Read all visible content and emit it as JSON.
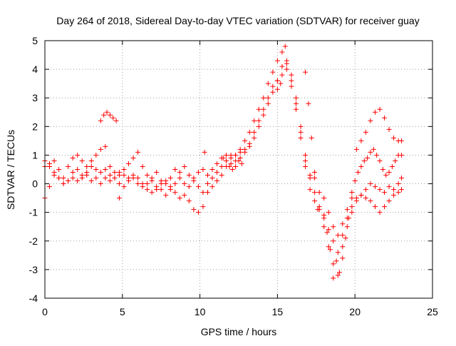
{
  "chart_data": {
    "type": "scatter",
    "title": "Day 264 of 2018, Sidereal Day-to-day VTEC variation (SDTVAR) for receiver guay",
    "xlabel": "GPS time / hours",
    "ylabel": "SDTVAR / TECUs",
    "xlim": [
      0,
      25
    ],
    "ylim": [
      -4,
      5
    ],
    "x_ticks": [
      "0",
      "5",
      "10",
      "15",
      "20",
      "25"
    ],
    "y_ticks": [
      "-4",
      "-3",
      "-2",
      "-1",
      "0",
      "1",
      "2",
      "3",
      "4",
      "5"
    ],
    "grid": true,
    "marker": "plus",
    "color": "#ff0000",
    "series": [
      {
        "x": [
          0.0,
          0.3,
          0.6,
          0.9,
          1.2,
          1.5,
          1.8,
          2.1,
          2.4,
          2.7,
          3.0,
          3.3,
          3.6,
          3.9,
          4.2,
          4.5,
          4.8,
          5.1,
          5.4,
          5.7,
          6.0,
          6.3,
          6.6,
          6.9,
          7.2,
          7.5,
          7.8,
          8.1,
          8.4,
          8.7,
          9.0,
          9.3,
          9.6,
          9.9,
          10.2,
          10.5,
          10.8,
          11.1,
          11.4,
          11.7,
          12.0,
          12.3,
          12.6,
          12.9,
          13.2,
          13.5,
          13.8,
          14.1,
          14.4,
          14.7,
          15.0,
          15.3,
          15.6,
          15.9,
          16.2,
          16.5,
          16.8,
          17.1,
          17.4,
          17.7,
          18.0,
          18.3,
          18.6,
          18.9,
          19.2,
          19.5,
          19.8,
          20.1,
          20.4,
          20.7,
          21.0,
          21.3,
          21.6,
          21.9,
          22.2,
          22.5,
          22.8,
          23.0
        ],
        "y": [
          -0.5,
          -0.1,
          0.3,
          0.2,
          0.0,
          0.1,
          0.2,
          0.1,
          0.2,
          0.3,
          0.1,
          0.2,
          0.0,
          0.2,
          0.1,
          0.2,
          0.0,
          -0.1,
          0.1,
          0.2,
          0.0,
          -0.1,
          0.0,
          0.1,
          -0.2,
          0.0,
          0.1,
          -0.1,
          0.0,
          0.2,
          0.0,
          -0.1,
          0.1,
          -0.1,
          -0.3,
          0.0,
          0.2,
          0.4,
          0.6,
          0.6,
          0.7,
          0.8,
          0.9,
          1.1,
          1.3,
          1.6,
          2.0,
          2.4,
          2.8,
          3.2,
          3.6,
          4.1,
          4.2,
          3.8,
          3.0,
          2.0,
          1.0,
          0.2,
          -0.3,
          -0.8,
          -1.5,
          -2.2,
          -2.8,
          -3.2,
          -2.2,
          -1.5,
          -1.0,
          -0.6,
          -0.4,
          -0.2,
          0.0,
          -0.1,
          -0.2,
          -0.3,
          -0.1,
          -0.2,
          0.0,
          0.2
        ]
      },
      {
        "x": [
          0.0,
          0.3,
          0.6,
          0.9,
          1.2,
          1.5,
          1.8,
          2.1,
          2.4,
          2.7,
          3.0,
          3.3,
          3.6,
          3.9,
          4.2,
          4.5,
          4.8,
          5.1,
          5.4,
          5.7,
          6.0,
          6.3,
          6.6,
          6.9,
          7.2,
          7.5,
          7.8,
          8.1,
          8.4,
          8.7,
          9.0,
          9.3,
          9.6,
          9.9,
          10.2,
          10.5,
          10.8,
          11.1,
          11.4,
          11.7,
          12.0,
          12.3,
          12.6,
          12.9,
          13.2,
          13.5,
          13.8,
          14.1,
          14.4,
          14.7,
          15.0,
          15.3,
          15.6,
          15.9,
          16.2,
          16.5,
          16.8,
          17.1,
          17.4,
          17.7,
          18.0,
          18.3,
          18.6,
          18.9,
          19.2,
          19.5,
          19.8,
          20.1,
          20.4,
          20.7,
          21.0,
          21.3,
          21.6,
          21.9,
          22.2,
          22.5,
          22.8,
          23.0
        ],
        "y": [
          0.8,
          0.6,
          0.4,
          0.2,
          0.0,
          0.1,
          0.4,
          0.5,
          0.3,
          0.4,
          0.6,
          0.5,
          0.4,
          0.5,
          0.3,
          0.2,
          0.4,
          0.3,
          0.2,
          0.3,
          0.2,
          0.0,
          -0.2,
          -0.3,
          -0.1,
          -0.2,
          -0.4,
          -0.2,
          -0.3,
          -0.5,
          -0.4,
          -0.6,
          -0.9,
          -1.0,
          -0.8,
          -0.3,
          -0.1,
          0.1,
          0.3,
          0.8,
          0.9,
          1.0,
          1.1,
          1.2,
          1.4,
          1.8,
          2.2,
          2.6,
          3.0,
          3.4,
          3.6,
          3.8,
          4.0,
          3.4,
          2.6,
          1.6,
          0.6,
          -0.2,
          -0.6,
          -0.9,
          -1.2,
          -1.6,
          -2.0,
          -2.4,
          -1.8,
          -1.2,
          -0.8,
          -0.5,
          -0.4,
          -0.5,
          -0.6,
          -0.8,
          -1.0,
          -0.8,
          -0.6,
          -0.4,
          -0.3,
          -0.2
        ]
      },
      {
        "x": [
          0.0,
          0.3,
          0.6,
          0.9,
          1.2,
          1.5,
          1.8,
          2.1,
          2.4,
          2.7,
          3.0,
          3.3,
          3.6,
          3.9,
          4.2,
          4.5,
          4.8,
          5.1,
          5.4,
          5.7,
          6.0,
          6.3,
          6.6,
          6.9,
          7.2,
          7.5,
          7.8,
          8.1,
          8.4,
          8.7,
          9.0,
          9.3,
          9.6,
          9.9,
          10.2,
          10.5,
          10.8,
          11.1,
          11.4,
          11.7,
          12.0,
          12.3,
          12.6,
          12.9,
          13.2,
          13.5,
          13.8,
          14.1,
          14.4,
          14.7,
          15.0,
          15.3,
          15.6,
          15.9,
          16.2,
          16.5,
          16.8,
          17.1,
          17.4,
          17.7,
          18.0,
          18.3,
          18.6,
          18.9,
          19.2,
          19.5,
          19.8,
          20.1,
          20.4,
          20.7,
          21.0,
          21.3,
          21.6,
          21.9,
          22.2,
          22.5,
          22.8,
          23.0
        ],
        "y": [
          0.6,
          0.7,
          0.8,
          0.5,
          0.2,
          0.6,
          0.9,
          1.0,
          0.8,
          0.6,
          0.8,
          1.0,
          1.2,
          1.3,
          0.6,
          0.4,
          0.3,
          0.5,
          0.7,
          0.9,
          1.1,
          0.6,
          0.3,
          0.2,
          0.4,
          0.1,
          0.0,
          0.2,
          0.5,
          0.4,
          0.6,
          0.3,
          0.2,
          0.4,
          0.5,
          0.3,
          0.5,
          0.7,
          0.9,
          1.0,
          1.0,
          1.0,
          1.2,
          1.5,
          1.8,
          2.2,
          2.6,
          3.0,
          3.5,
          3.9,
          4.3,
          4.6,
          4.3,
          3.6,
          2.8,
          1.8,
          0.8,
          0.3,
          0.2,
          -0.3,
          -0.5,
          -1.0,
          -1.5,
          -1.8,
          -1.4,
          -0.9,
          -0.5,
          1.2,
          1.5,
          1.8,
          2.2,
          2.5,
          2.6,
          2.3,
          1.9,
          1.6,
          1.5,
          1.5
        ]
      },
      {
        "x": [
          3.6,
          3.8,
          4.0,
          4.2,
          4.4,
          4.6,
          4.8,
          10.3,
          11.5,
          11.7,
          11.9,
          12.1,
          12.3,
          12.5,
          12.7,
          15.0,
          15.2,
          15.5,
          16.8,
          17.0,
          17.2,
          17.4,
          17.6,
          18.0,
          18.2,
          18.4,
          18.6,
          18.8,
          19.0,
          19.2,
          19.4,
          19.6,
          19.8,
          20.0,
          20.2,
          20.4,
          20.6,
          20.8,
          21.0,
          21.2,
          21.4,
          21.6,
          21.8,
          22.0,
          22.2,
          22.4,
          22.6,
          22.8,
          23.0
        ],
        "y": [
          2.2,
          2.4,
          2.5,
          2.4,
          2.3,
          2.2,
          -0.5,
          1.1,
          0.9,
          0.8,
          0.6,
          0.5,
          0.6,
          0.8,
          0.7,
          3.3,
          3.5,
          4.8,
          3.9,
          2.8,
          1.6,
          0.4,
          -0.9,
          -1.1,
          -1.7,
          -2.3,
          -3.3,
          -2.7,
          -3.1,
          -2.6,
          -1.9,
          -1.2,
          -0.3,
          0.1,
          0.4,
          0.6,
          0.8,
          0.9,
          1.1,
          1.2,
          1.0,
          0.8,
          0.5,
          0.3,
          0.4,
          0.6,
          0.8,
          1.0,
          1.0
        ]
      }
    ]
  }
}
